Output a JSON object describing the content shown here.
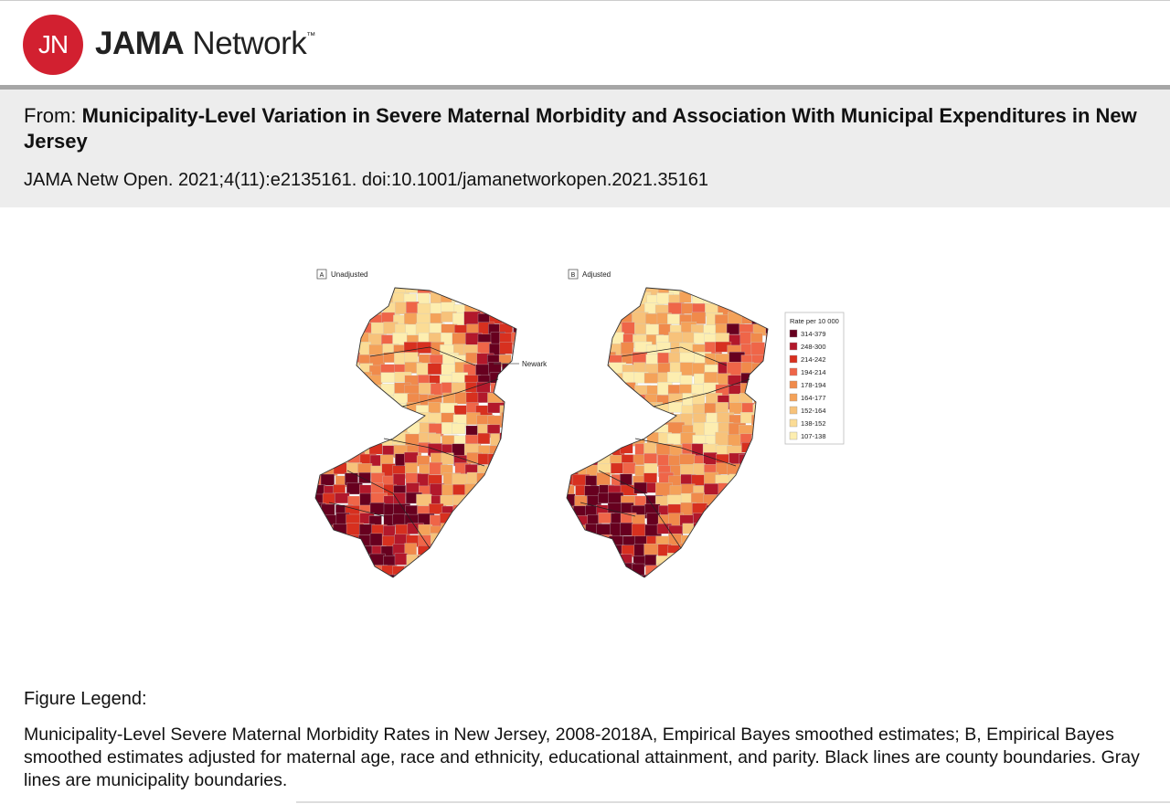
{
  "header": {
    "logo_initials": "JN",
    "brand_bold": "JAMA",
    "brand_rest": "Network",
    "trademark": "™"
  },
  "article": {
    "from_label": "From:",
    "title": "Municipality-Level Variation in Severe Maternal Morbidity and Association With Municipal Expenditures in New Jersey",
    "citation": "JAMA Netw Open. 2021;4(11):e2135161. doi:10.1001/jamanetworkopen.2021.35161"
  },
  "figure": {
    "panels": [
      {
        "letter": "A",
        "label": "Unadjusted"
      },
      {
        "letter": "B",
        "label": "Adjusted"
      }
    ],
    "annotation": "Newark",
    "legend": {
      "title": "Rate per 10 000",
      "items": [
        {
          "label": "314-379",
          "color": "#67001f"
        },
        {
          "label": "248-300",
          "color": "#b2182b"
        },
        {
          "label": "214-242",
          "color": "#d7301f"
        },
        {
          "label": "194-214",
          "color": "#ef6548"
        },
        {
          "label": "178-194",
          "color": "#f08a4b"
        },
        {
          "label": "164-177",
          "color": "#f4a259"
        },
        {
          "label": "152-164",
          "color": "#f7c27a"
        },
        {
          "label": "138-152",
          "color": "#fbdc95"
        },
        {
          "label": "107-138",
          "color": "#fdeeb0"
        }
      ]
    }
  },
  "figure_legend": {
    "heading": "Figure Legend:",
    "text": "Municipality-Level Severe Maternal Morbidity Rates in New Jersey, 2008-2018A, Empirical Bayes smoothed estimates; B, Empirical Bayes smoothed estimates adjusted for maternal age, race and ethnicity, educational attainment, and parity. Black lines are county boundaries. Gray lines are municipality boundaries."
  }
}
